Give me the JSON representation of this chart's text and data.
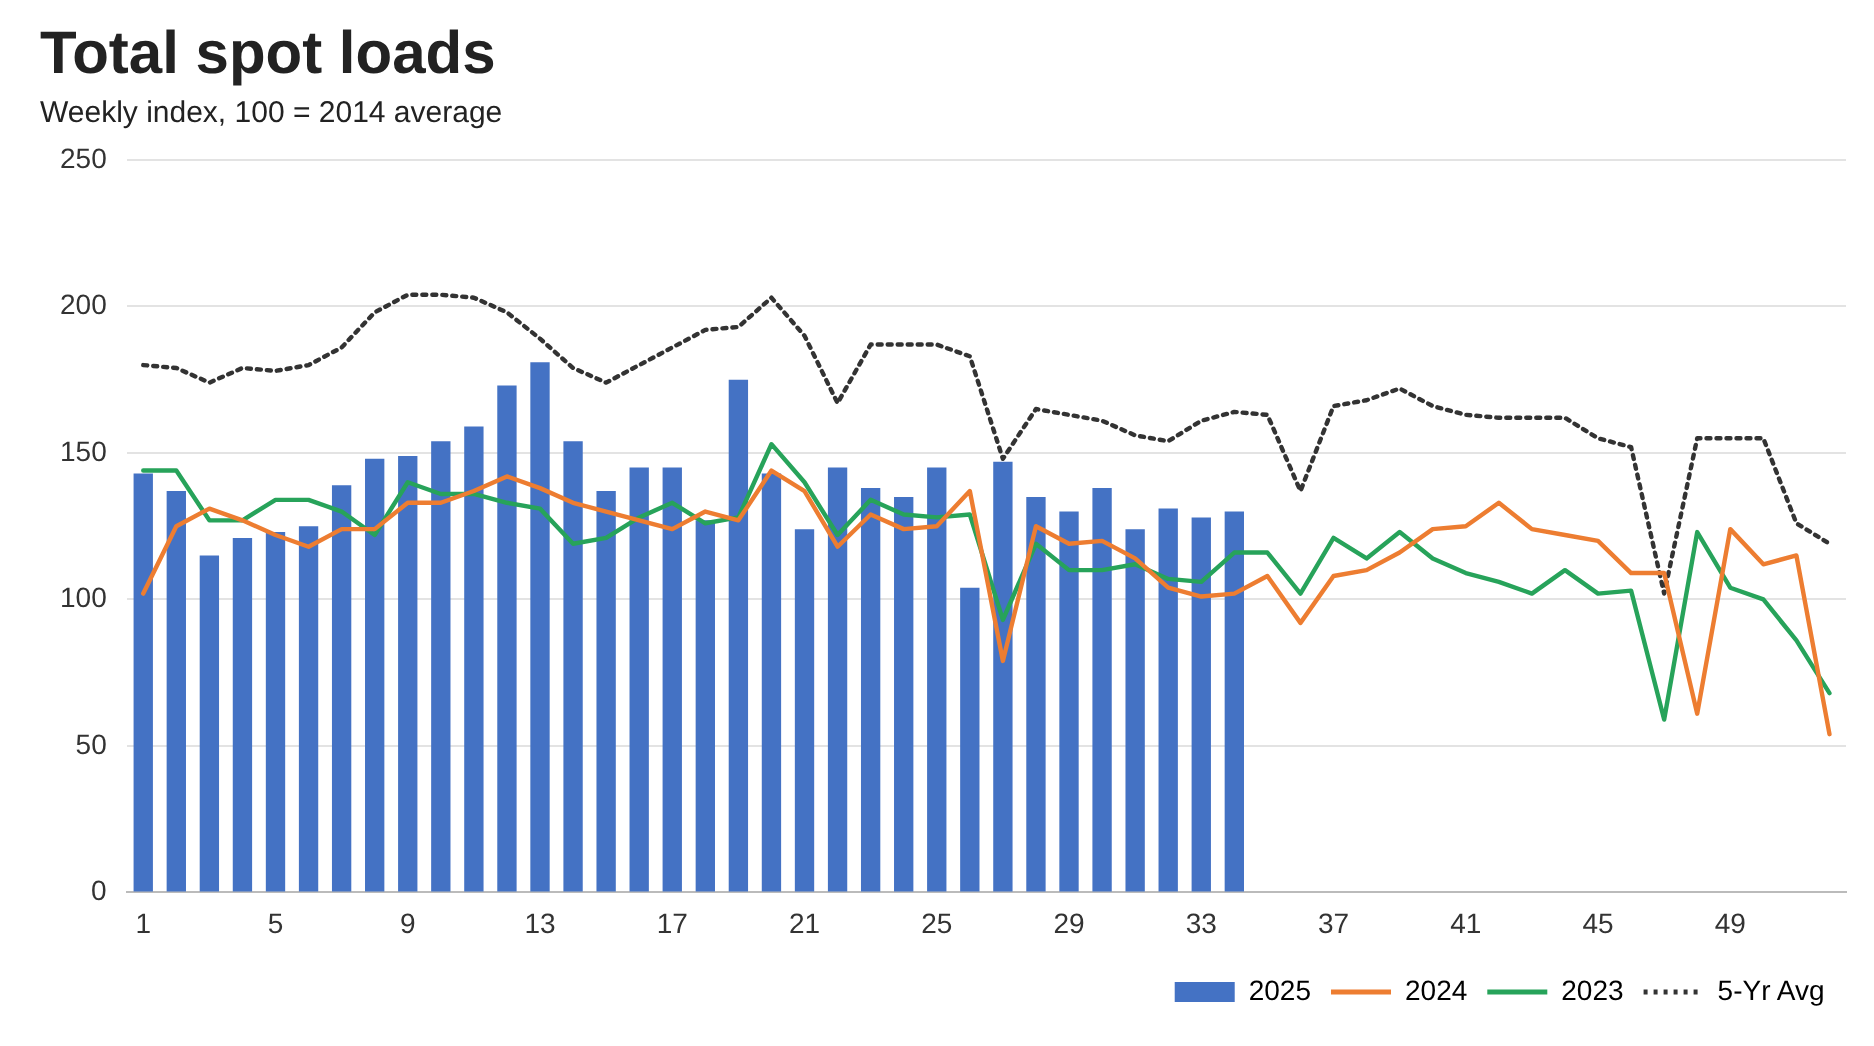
{
  "chart_data": {
    "type": "bar",
    "title": "Total spot loads",
    "subtitle": "Weekly index, 100 = 2014 average",
    "categories": [
      "1",
      null,
      null,
      null,
      "5",
      null,
      null,
      null,
      "9",
      null,
      null,
      null,
      "13",
      null,
      null,
      null,
      "17",
      null,
      null,
      null,
      "21",
      null,
      null,
      null,
      "25",
      null,
      null,
      null,
      "29",
      null,
      null,
      null,
      "33",
      null,
      null,
      null,
      "37",
      null,
      null,
      null,
      "41",
      null,
      null,
      null,
      "45",
      null,
      null,
      null,
      "49",
      null,
      null,
      null
    ],
    "ylim": [
      0,
      250
    ],
    "yticks": [
      0,
      50,
      100,
      150,
      200,
      250
    ],
    "grid": "y",
    "legend": "bottom right",
    "marker": "none",
    "series": [
      {
        "name": "2025",
        "color": "#4472c4",
        "values": [
          143,
          137,
          115,
          121,
          123,
          125,
          139,
          148,
          149,
          154,
          159,
          173,
          181,
          154,
          137,
          145,
          145,
          127,
          175,
          143,
          124,
          145,
          138,
          135,
          145,
          104,
          147,
          135,
          130,
          138,
          124,
          131,
          128,
          130,
          null,
          null,
          null,
          null,
          null,
          null,
          null,
          null,
          null,
          null,
          null,
          null,
          null,
          null,
          null,
          null,
          null,
          null
        ]
      },
      {
        "name": "2024",
        "type": "line",
        "color": "#ed7d31",
        "line_style": "solid",
        "values": [
          102,
          125,
          131,
          127,
          122,
          118,
          124,
          124,
          133,
          133,
          137,
          142,
          138,
          133,
          130,
          127,
          124,
          130,
          127,
          144,
          137,
          118,
          129,
          124,
          125,
          137,
          79,
          125,
          119,
          120,
          114,
          104,
          101,
          102,
          108,
          92,
          108,
          110,
          116,
          124,
          125,
          133,
          124,
          122,
          120,
          109,
          109,
          61,
          124,
          112,
          115,
          54
        ]
      },
      {
        "name": "2023",
        "type": "line",
        "color": "#27a35a",
        "line_style": "solid",
        "values": [
          144,
          144,
          127,
          127,
          134,
          134,
          130,
          122,
          140,
          136,
          136,
          133,
          131,
          119,
          121,
          128,
          133,
          126,
          128,
          153,
          140,
          122,
          134,
          129,
          128,
          129,
          93,
          119,
          110,
          110,
          112,
          107,
          106,
          116,
          116,
          102,
          121,
          114,
          123,
          114,
          109,
          106,
          102,
          110,
          102,
          103,
          59,
          123,
          104,
          100,
          86,
          68
        ]
      },
      {
        "name": "5-Yr Avg",
        "type": "line",
        "color": "#333333",
        "line_style": "dotted",
        "values": [
          180,
          179,
          174,
          179,
          178,
          180,
          186,
          198,
          204,
          204,
          203,
          198,
          189,
          179,
          174,
          180,
          186,
          192,
          193,
          203,
          190,
          167,
          187,
          187,
          187,
          183,
          148,
          165,
          163,
          161,
          156,
          154,
          161,
          164,
          163,
          137,
          166,
          168,
          172,
          166,
          163,
          162,
          162,
          162,
          155,
          152,
          102,
          155,
          155,
          155,
          126,
          119
        ]
      }
    ]
  }
}
